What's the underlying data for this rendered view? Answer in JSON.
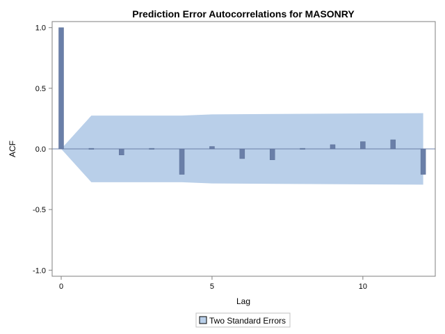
{
  "chart_data": {
    "type": "bar",
    "title": "Prediction Error Autocorrelations for MASONRY",
    "xlabel": "Lag",
    "ylabel": "ACF",
    "xlim": [
      -0.3,
      12.4
    ],
    "ylim": [
      -1.05,
      1.05
    ],
    "x_ticks": [
      0,
      5,
      10
    ],
    "y_ticks": [
      1.0,
      0.5,
      0.0,
      -0.5,
      -1.0
    ],
    "y_tick_labels": [
      "1.0",
      "0.5",
      "0.0",
      "-0.5",
      "-1.0"
    ],
    "grid": false,
    "series": [
      {
        "lags": [
          0,
          1,
          2,
          3,
          4,
          5,
          6,
          7,
          8,
          9,
          10,
          11,
          12
        ],
        "values": [
          1.0,
          0.005,
          -0.05,
          0.005,
          -0.21,
          0.02,
          -0.08,
          -0.09,
          0.005,
          0.035,
          0.06,
          0.075,
          -0.21
        ],
        "color": "#6a7fa8"
      }
    ],
    "confidence_band": {
      "name": "Two Standard Errors",
      "lags": [
        0,
        1,
        4,
        5,
        12
      ],
      "upper": [
        0.0,
        0.275,
        0.275,
        0.285,
        0.295
      ],
      "lower": [
        0.0,
        -0.275,
        -0.275,
        -0.285,
        -0.295
      ],
      "color": "#b9cfe9"
    },
    "legend": {
      "position": "bottom-center",
      "entries": [
        "Two Standard Errors"
      ]
    }
  }
}
